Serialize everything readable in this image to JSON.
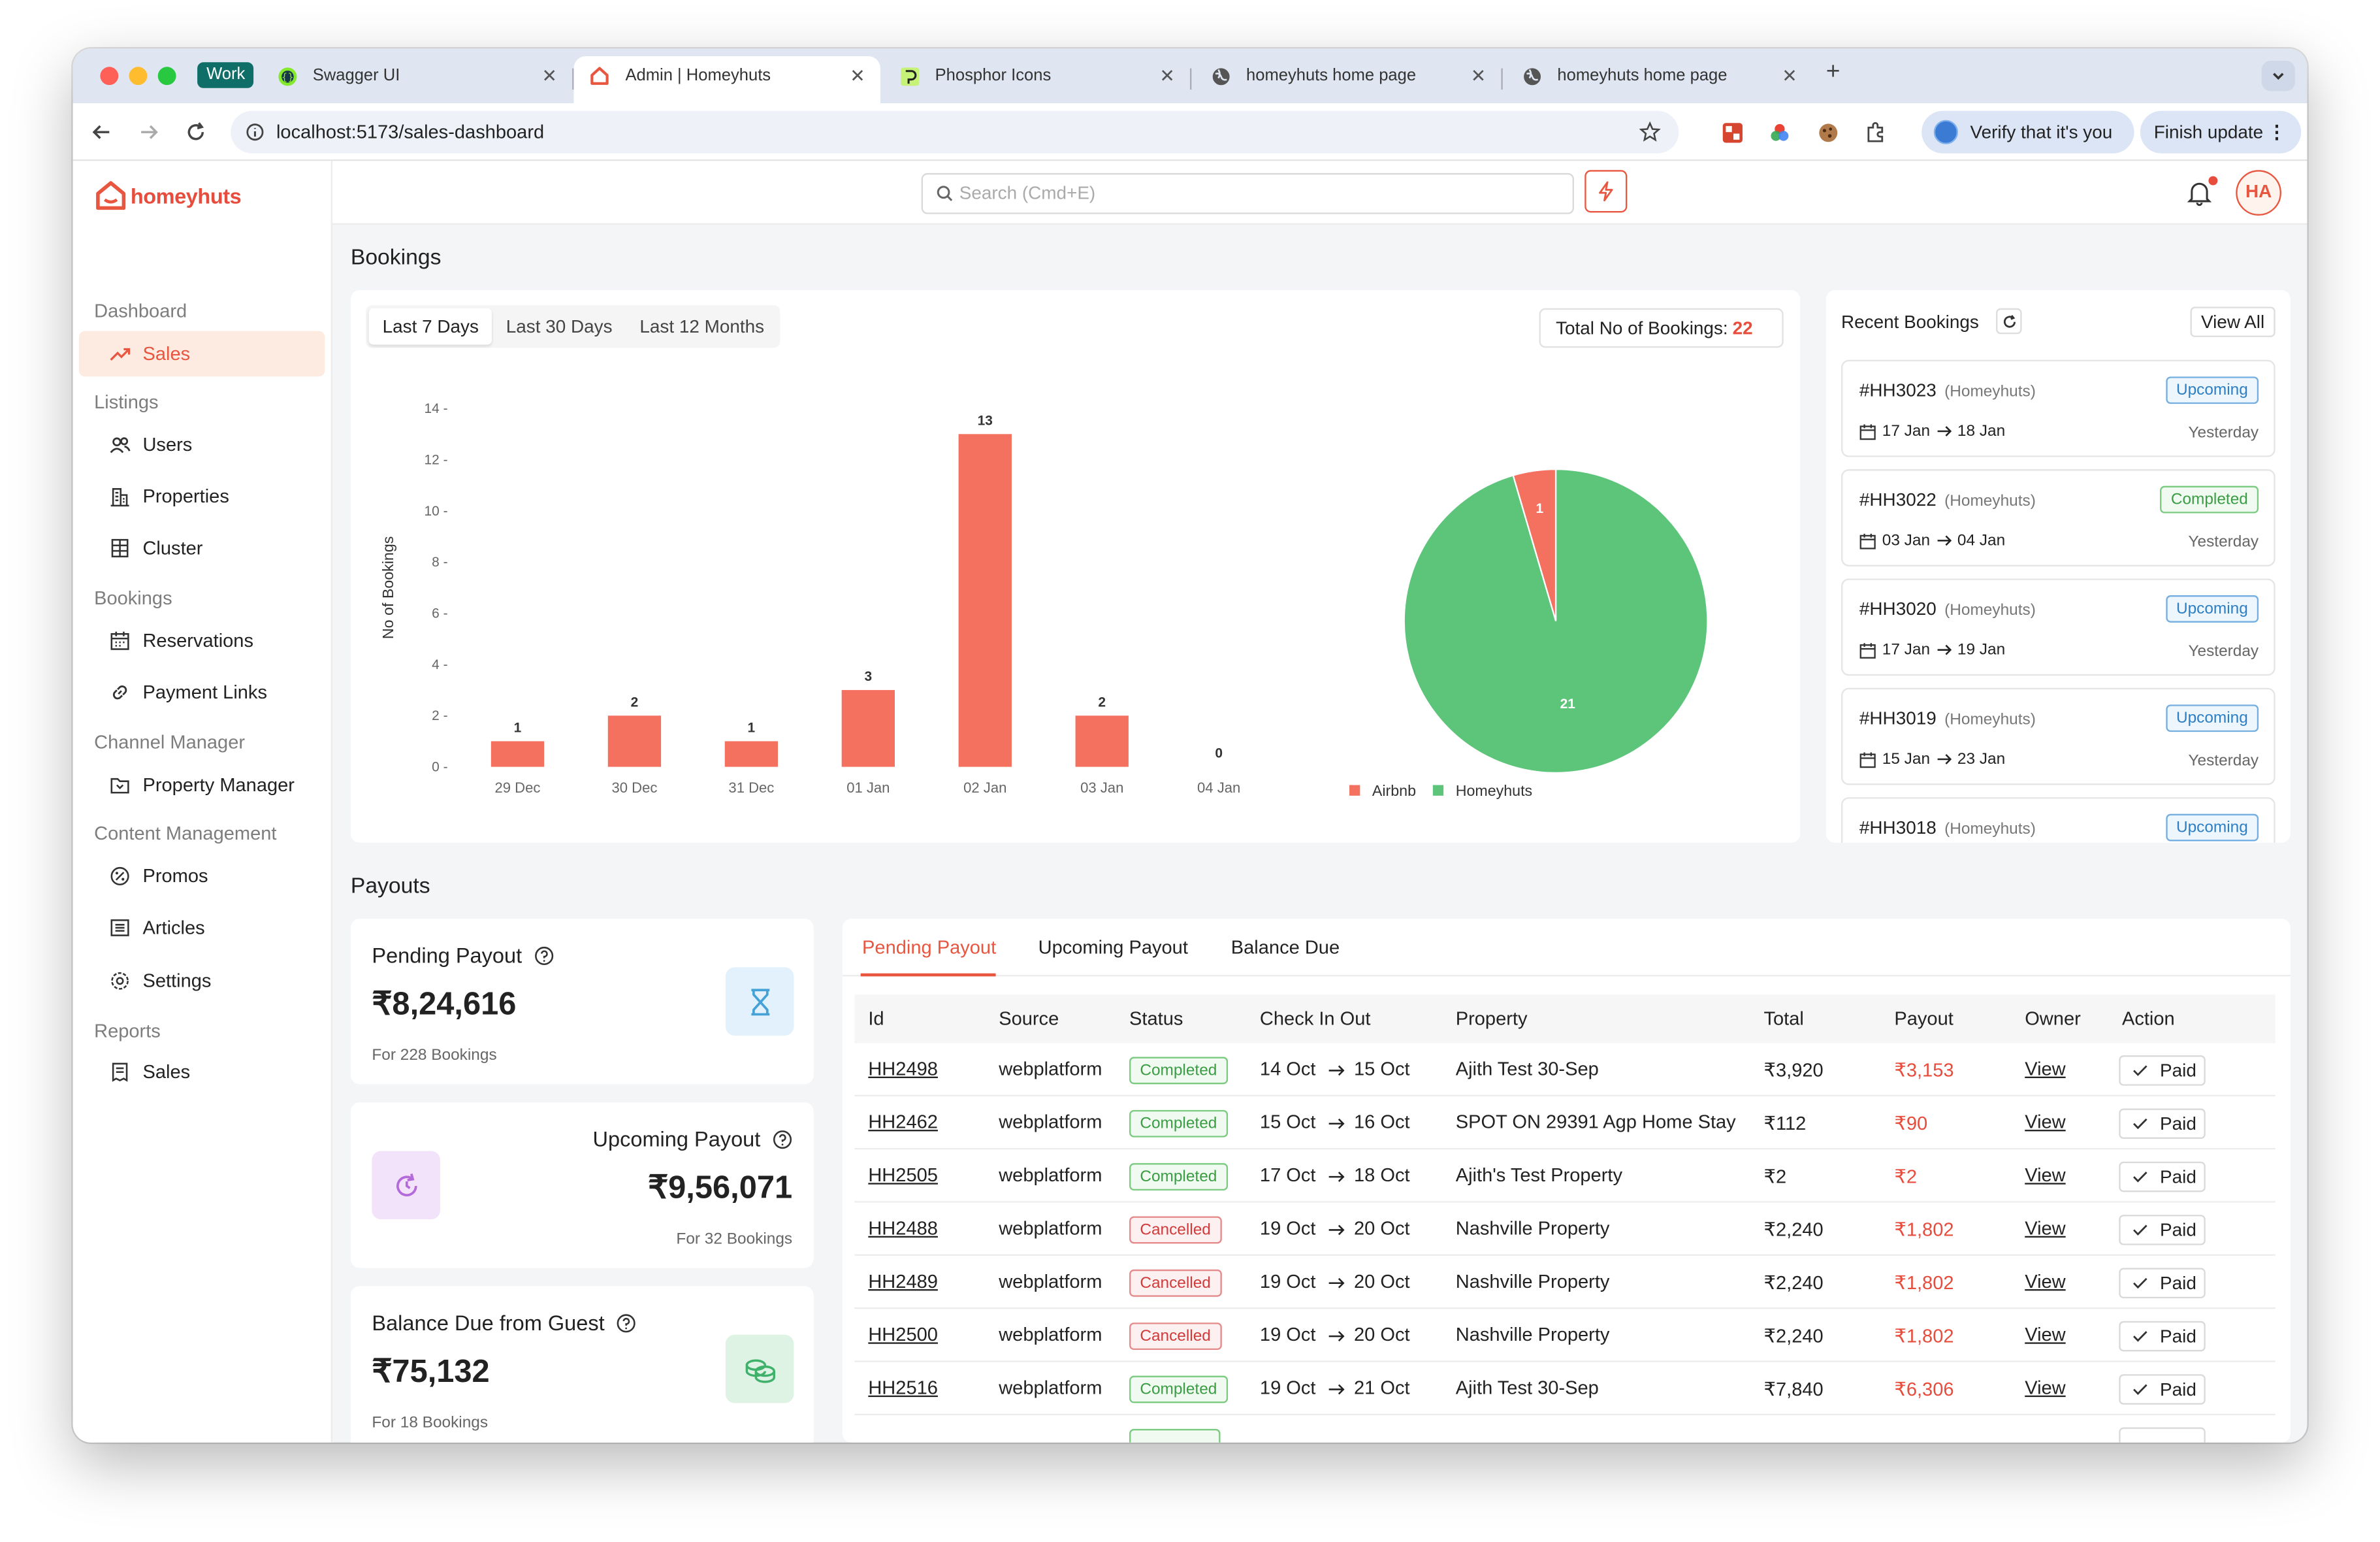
{
  "browser": {
    "work_badge": "Work",
    "tabs": [
      {
        "label": "Swagger UI",
        "icon": "swagger-icon",
        "active": false
      },
      {
        "label": "Admin | Homeyhuts",
        "icon": "homeyhuts-icon",
        "active": true
      },
      {
        "label": "Phosphor Icons",
        "icon": "phosphor-icon",
        "active": false
      },
      {
        "label": "homeyhuts home page",
        "icon": "globe-icon",
        "active": false
      },
      {
        "label": "homeyhuts home page",
        "icon": "globe-icon",
        "active": false
      }
    ],
    "new_tab": "+",
    "url": "localhost:5173/sales-dashboard",
    "verify_label": "Verify that it's you",
    "finish_update_label": "Finish update"
  },
  "app": {
    "brand": "homeyhuts",
    "brand_color": "#e8563f",
    "search_placeholder": "Search (Cmd+E)",
    "avatar_initials": "HA"
  },
  "sidebar": {
    "sections": [
      {
        "title": "Dashboard",
        "items": [
          {
            "label": "Sales",
            "icon": "trend-up-icon",
            "active": true
          }
        ]
      },
      {
        "title": "Listings",
        "items": [
          {
            "label": "Users",
            "icon": "users-icon"
          },
          {
            "label": "Properties",
            "icon": "buildings-icon"
          },
          {
            "label": "Cluster",
            "icon": "grid-icon"
          }
        ]
      },
      {
        "title": "Bookings",
        "items": [
          {
            "label": "Reservations",
            "icon": "calendar-icon"
          },
          {
            "label": "Payment Links",
            "icon": "link-icon"
          }
        ]
      },
      {
        "title": "Channel Manager",
        "items": [
          {
            "label": "Property Manager",
            "icon": "map-icon"
          }
        ]
      },
      {
        "title": "Content Management",
        "items": [
          {
            "label": "Promos",
            "icon": "promo-icon"
          },
          {
            "label": "Articles",
            "icon": "article-icon"
          },
          {
            "label": "Settings",
            "icon": "gear-icon"
          }
        ]
      },
      {
        "title": "Reports",
        "items": [
          {
            "label": "Sales",
            "icon": "receipt-icon"
          }
        ]
      }
    ]
  },
  "bookings": {
    "heading": "Bookings",
    "ranges": [
      "Last 7 Days",
      "Last 30 Days",
      "Last 12 Months"
    ],
    "selected_range": "Last 7 Days",
    "total_label": "Total No of Bookings:",
    "total_value": "22"
  },
  "chart_data": [
    {
      "type": "bar",
      "categories": [
        "29 Dec",
        "30 Dec",
        "31 Dec",
        "01 Jan",
        "02 Jan",
        "03 Jan",
        "04 Jan"
      ],
      "values": [
        1,
        2,
        1,
        3,
        13,
        2,
        0
      ],
      "ylabel": "No of Bookings",
      "ylim": [
        0,
        14
      ],
      "yticks": [
        0,
        2,
        4,
        6,
        8,
        10,
        12,
        14
      ],
      "color": "#f4705f",
      "grid": false
    },
    {
      "type": "pie",
      "labels": [
        "Airbnb",
        "Homeyhuts"
      ],
      "values": [
        1,
        21
      ],
      "colors": [
        "#f4705f",
        "#5cc57a"
      ],
      "legend": "bottom"
    }
  ],
  "recent_bookings": {
    "title": "Recent Bookings",
    "view_all": "View All",
    "items": [
      {
        "id": "#HH3023",
        "source": "(Homeyhuts)",
        "status": "Upcoming",
        "from": "17 Jan",
        "to": "18 Jan",
        "when": "Yesterday"
      },
      {
        "id": "#HH3022",
        "source": "(Homeyhuts)",
        "status": "Completed",
        "from": "03 Jan",
        "to": "04 Jan",
        "when": "Yesterday"
      },
      {
        "id": "#HH3020",
        "source": "(Homeyhuts)",
        "status": "Upcoming",
        "from": "17 Jan",
        "to": "19 Jan",
        "when": "Yesterday"
      },
      {
        "id": "#HH3019",
        "source": "(Homeyhuts)",
        "status": "Upcoming",
        "from": "15 Jan",
        "to": "23 Jan",
        "when": "Yesterday"
      },
      {
        "id": "#HH3018",
        "source": "(Homeyhuts)",
        "status": "Upcoming",
        "from": "",
        "to": "",
        "when": ""
      }
    ]
  },
  "payouts": {
    "heading": "Payouts",
    "cards": [
      {
        "title": "Pending Payout",
        "amount": "₹8,24,616",
        "sub": "For 228 Bookings",
        "icon": "hourglass-icon"
      },
      {
        "title": "Upcoming Payout",
        "amount": "₹9,56,071",
        "sub": "For 32 Bookings",
        "icon": "clockwise-icon"
      },
      {
        "title": "Balance Due from Guest",
        "amount": "₹75,132",
        "sub": "For 18 Bookings",
        "icon": "coins-icon"
      }
    ],
    "tabs": [
      "Pending Payout",
      "Upcoming Payout",
      "Balance Due"
    ],
    "selected_tab": "Pending Payout",
    "columns": [
      "Id",
      "Source",
      "Status",
      "Check In Out",
      "Property",
      "Total",
      "Payout",
      "Owner",
      "Action"
    ],
    "rows": [
      {
        "id": "HH2498",
        "source": "webplatform",
        "status": "Completed",
        "in": "14 Oct",
        "out": "15 Oct",
        "property": "Ajith Test 30-Sep",
        "total": "₹3,920",
        "payout": "₹3,153",
        "owner": "View",
        "action": "Paid"
      },
      {
        "id": "HH2462",
        "source": "webplatform",
        "status": "Completed",
        "in": "15 Oct",
        "out": "16 Oct",
        "property": "SPOT ON 29391 Agp Home Stay",
        "total": "₹112",
        "payout": "₹90",
        "owner": "View",
        "action": "Paid"
      },
      {
        "id": "HH2505",
        "source": "webplatform",
        "status": "Completed",
        "in": "17 Oct",
        "out": "18 Oct",
        "property": "Ajith's Test Property",
        "total": "₹2",
        "payout": "₹2",
        "owner": "View",
        "action": "Paid"
      },
      {
        "id": "HH2488",
        "source": "webplatform",
        "status": "Cancelled",
        "in": "19 Oct",
        "out": "20 Oct",
        "property": "Nashville Property",
        "total": "₹2,240",
        "payout": "₹1,802",
        "owner": "View",
        "action": "Paid"
      },
      {
        "id": "HH2489",
        "source": "webplatform",
        "status": "Cancelled",
        "in": "19 Oct",
        "out": "20 Oct",
        "property": "Nashville Property",
        "total": "₹2,240",
        "payout": "₹1,802",
        "owner": "View",
        "action": "Paid"
      },
      {
        "id": "HH2500",
        "source": "webplatform",
        "status": "Cancelled",
        "in": "19 Oct",
        "out": "20 Oct",
        "property": "Nashville Property",
        "total": "₹2,240",
        "payout": "₹1,802",
        "owner": "View",
        "action": "Paid"
      },
      {
        "id": "HH2516",
        "source": "webplatform",
        "status": "Completed",
        "in": "19 Oct",
        "out": "21 Oct",
        "property": "Ajith Test 30-Sep",
        "total": "₹7,840",
        "payout": "₹6,306",
        "owner": "View",
        "action": "Paid"
      }
    ]
  }
}
